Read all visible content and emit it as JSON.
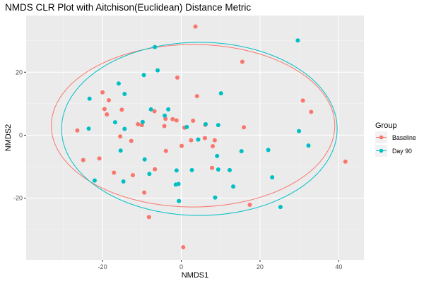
{
  "chart_data": {
    "type": "scatter",
    "title": "NMDS CLR Plot with Aitchison(Euclidean) Distance Metric",
    "xlabel": "NMDS1",
    "ylabel": "NMDS2",
    "xlim": [
      -39.4,
      46.4
    ],
    "ylim": [
      -39.6,
      38.0
    ],
    "x_ticks": [
      -20,
      0,
      20,
      40
    ],
    "y_ticks": [
      -20,
      0,
      20
    ],
    "grid": true,
    "legend": {
      "title": "Group",
      "placement": "right"
    },
    "series": [
      {
        "name": "Baseline",
        "color": "#F8766D",
        "x": [
          3.6,
          15.5,
          -20.0,
          -18.9,
          -18.4,
          -15.1,
          -19.5,
          -26.4,
          -24.9,
          -20.8,
          -17.1,
          -15.5,
          -12.7,
          -11.0,
          -10.0,
          -6.8,
          -4.0,
          -4.3,
          -2.2,
          -1.0,
          0.1,
          0.8,
          2.5,
          4.0,
          6.1,
          7.8,
          8.0,
          8.5,
          15.9,
          17.4,
          30.9,
          33.0,
          41.7,
          -3.9,
          -12.3,
          -9.4,
          -6.7,
          -8.2,
          0.5,
          6.0,
          -1.2,
          3.0
        ],
        "y": [
          34.5,
          23.3,
          13.6,
          6.6,
          11.1,
          8.1,
          8.3,
          1.5,
          -7.9,
          -7.4,
          -11.9,
          -0.4,
          -1.8,
          3.5,
          3.2,
          7.6,
          5.2,
          2.9,
          5.1,
          18.3,
          -3.4,
          2.4,
          -1.6,
          12.4,
          3.3,
          -10.4,
          -3.5,
          -1.6,
          2.5,
          -22.1,
          11.0,
          7.4,
          -8.4,
          -5.0,
          -12.7,
          -18.2,
          -10.8,
          -26.0,
          -35.6,
          -0.9,
          4.7,
          4.6
        ]
      },
      {
        "name": "Day 90",
        "color": "#00BFC4",
        "x": [
          -23.3,
          -23.5,
          -22.0,
          -15.9,
          -14.4,
          -16.8,
          -15.4,
          -14.7,
          -9.8,
          -9.3,
          -8.1,
          -6.7,
          -6.0,
          -3.3,
          -4.2,
          -1.2,
          -0.7,
          1.4,
          2.7,
          4.3,
          6.2,
          9.1,
          9.4,
          10.1,
          12.3,
          13.2,
          15.3,
          22.1,
          23.1,
          25.2,
          29.6,
          29.9,
          32.3,
          -9.5,
          -7.7,
          -14.4,
          -0.6,
          -1.4,
          8.6,
          9.4
        ],
        "y": [
          11.6,
          2.1,
          -14.4,
          16.4,
          13.1,
          4.1,
          -4.9,
          -14.7,
          4.2,
          -7.7,
          -12.3,
          28.0,
          20.6,
          8.2,
          6.2,
          -11.2,
          -15.5,
          2.6,
          -11.1,
          -1.4,
          3.5,
          -6.6,
          3.2,
          13.3,
          -11.1,
          -16.3,
          -5.1,
          -4.7,
          -13.4,
          -22.8,
          30.1,
          1.3,
          -3.3,
          19.1,
          8.2,
          2.0,
          -20.9,
          -15.7,
          -19.8,
          -10.9
        ]
      }
    ],
    "ellipses": [
      {
        "group": "Baseline",
        "color": "#F8766D",
        "cx": 3.0,
        "cy": 3.0,
        "rx": 36.0,
        "ry": 25.8,
        "angle": 0
      },
      {
        "group": "Day 90",
        "color": "#00BFC4",
        "cx": 4.6,
        "cy": 2.0,
        "rx": 35.0,
        "ry": 27.5,
        "angle": 0
      }
    ]
  }
}
